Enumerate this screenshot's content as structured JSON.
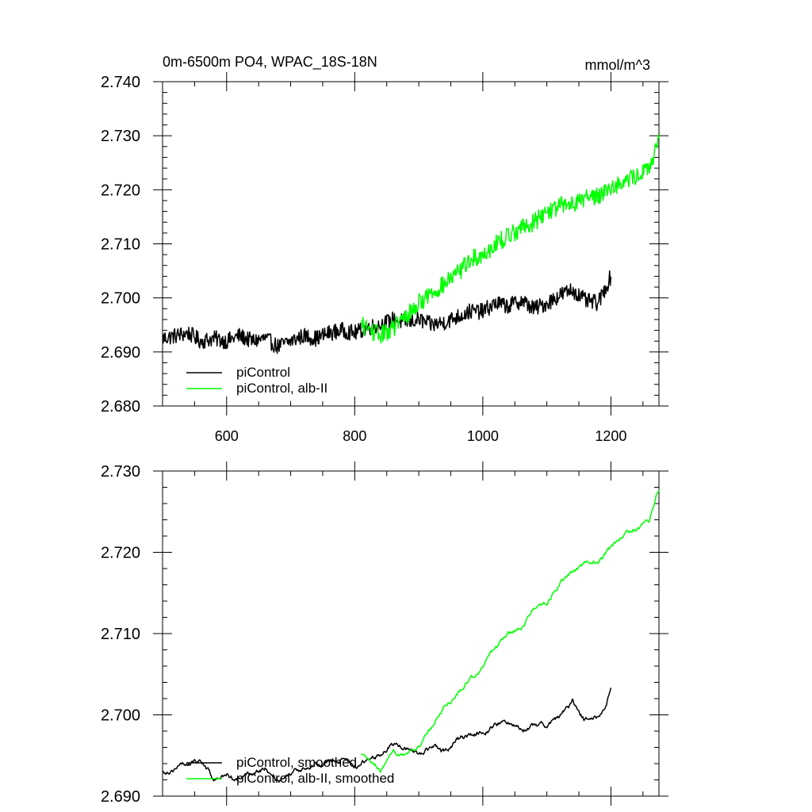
{
  "chart_data": [
    {
      "type": "line",
      "title": "0m-6500m PO4, WPAC_18S-18N",
      "units": "mmol/m^3",
      "xlim": [
        500,
        1275
      ],
      "ylim": [
        2.68,
        2.74
      ],
      "xticks": [
        600,
        800,
        1000,
        1200
      ],
      "xtick_labels": [
        "600",
        "800",
        "1000",
        "1200"
      ],
      "yticks": [
        2.68,
        2.69,
        2.7,
        2.71,
        2.72,
        2.73,
        2.74
      ],
      "ytick_labels": [
        "2.680",
        "2.690",
        "2.700",
        "2.710",
        "2.720",
        "2.730",
        "2.740"
      ],
      "legend_position": "bottom-left",
      "series": [
        {
          "name": "piControl",
          "color": "#000000",
          "x": [
            500,
            520,
            540,
            560,
            580,
            600,
            620,
            640,
            660,
            680,
            700,
            720,
            740,
            760,
            780,
            800,
            820,
            840,
            860,
            880,
            900,
            920,
            940,
            960,
            980,
            1000,
            1020,
            1040,
            1060,
            1080,
            1100,
            1120,
            1140,
            1160,
            1180,
            1200
          ],
          "y": [
            2.6925,
            2.693,
            2.6935,
            2.692,
            2.6925,
            2.692,
            2.693,
            2.692,
            2.6925,
            2.691,
            2.692,
            2.693,
            2.6925,
            2.6935,
            2.694,
            2.6935,
            2.6945,
            2.695,
            2.696,
            2.6955,
            2.696,
            2.695,
            2.6955,
            2.6965,
            2.6975,
            2.6975,
            2.699,
            2.6985,
            2.6995,
            2.698,
            2.699,
            2.7005,
            2.7015,
            2.6995,
            2.699,
            2.704
          ],
          "noise": 0.0015
        },
        {
          "name": "piControl, alb-II",
          "color": "#00ff00",
          "x": [
            810,
            840,
            860,
            880,
            900,
            920,
            940,
            960,
            980,
            1000,
            1020,
            1040,
            1060,
            1080,
            1100,
            1120,
            1140,
            1160,
            1180,
            1200,
            1220,
            1240,
            1260,
            1275
          ],
          "y": [
            2.695,
            2.693,
            2.6945,
            2.6965,
            2.699,
            2.701,
            2.7025,
            2.7045,
            2.707,
            2.708,
            2.71,
            2.7115,
            2.713,
            2.714,
            2.716,
            2.717,
            2.7175,
            2.7185,
            2.719,
            2.7205,
            2.7215,
            2.7225,
            2.724,
            2.729
          ],
          "noise": 0.0017
        }
      ]
    },
    {
      "type": "line",
      "title": "",
      "units": "",
      "xlim": [
        500,
        1275
      ],
      "ylim": [
        2.69,
        2.73
      ],
      "xticks": [
        600,
        800,
        1000,
        1200
      ],
      "xtick_labels": [],
      "yticks": [
        2.69,
        2.7,
        2.71,
        2.72,
        2.73
      ],
      "ytick_labels": [
        "2.690",
        "2.700",
        "2.710",
        "2.720",
        "2.730"
      ],
      "legend_position": "bottom-left",
      "series": [
        {
          "name": "piControl, smoothed",
          "color": "#000000",
          "x": [
            500,
            520,
            540,
            560,
            580,
            600,
            620,
            640,
            660,
            680,
            700,
            720,
            740,
            760,
            780,
            800,
            820,
            840,
            860,
            880,
            900,
            920,
            940,
            960,
            980,
            1000,
            1020,
            1040,
            1060,
            1080,
            1100,
            1120,
            1140,
            1160,
            1180,
            1200
          ],
          "y": [
            2.693,
            2.6935,
            2.694,
            2.6945,
            2.692,
            2.6925,
            2.692,
            2.693,
            2.6935,
            2.6915,
            2.6925,
            2.6935,
            2.694,
            2.6945,
            2.6945,
            2.6935,
            2.6945,
            2.695,
            2.6965,
            2.696,
            2.6955,
            2.696,
            2.6955,
            2.697,
            2.6975,
            2.698,
            2.699,
            2.699,
            2.6985,
            2.6985,
            2.699,
            2.6998,
            2.7015,
            2.6995,
            2.6995,
            2.703
          ],
          "noise": 0.0007
        },
        {
          "name": "piControl, alb-II, smoothed",
          "color": "#00ff00",
          "x": [
            810,
            840,
            860,
            880,
            900,
            920,
            940,
            960,
            980,
            1000,
            1020,
            1040,
            1060,
            1080,
            1100,
            1120,
            1140,
            1160,
            1180,
            1200,
            1220,
            1240,
            1260,
            1275
          ],
          "y": [
            2.695,
            2.693,
            2.695,
            2.6955,
            2.696,
            2.6985,
            2.701,
            2.7025,
            2.7045,
            2.706,
            2.7085,
            2.71,
            2.711,
            2.713,
            2.714,
            2.716,
            2.7175,
            2.7185,
            2.719,
            2.7205,
            2.722,
            2.723,
            2.724,
            2.728
          ],
          "noise": 0.0006
        }
      ]
    }
  ]
}
